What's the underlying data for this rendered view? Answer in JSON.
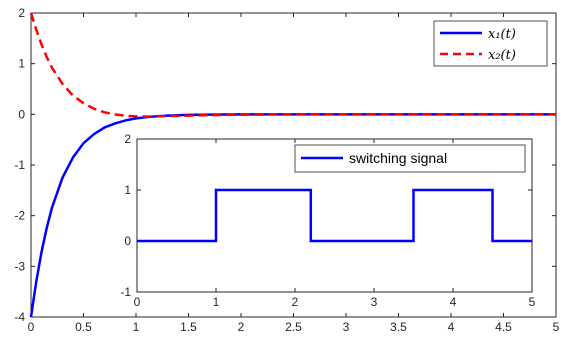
{
  "chart_data": [
    {
      "type": "line",
      "xlim": [
        0,
        5
      ],
      "ylim": [
        -4,
        2
      ],
      "xticks": [
        "0",
        "0.5",
        "1",
        "1.5",
        "2",
        "2.5",
        "3",
        "3.5",
        "4",
        "4.5",
        "5"
      ],
      "yticks": [
        "2",
        "1",
        "0",
        "-1",
        "-2",
        "-3",
        "-4"
      ],
      "grid": false,
      "legend_position": "top-right",
      "series": [
        {
          "name": "x₁(t)",
          "color": "#0000ff",
          "style": "solid",
          "x": [
            0,
            0.05,
            0.1,
            0.15,
            0.2,
            0.3,
            0.4,
            0.5,
            0.6,
            0.7,
            0.8,
            0.9,
            1.0,
            1.1,
            1.2,
            1.3,
            1.4,
            1.5,
            1.6,
            1.8,
            2.0,
            2.5,
            3.0,
            3.5,
            4.0,
            4.5,
            5.0
          ],
          "y": [
            -4.0,
            -3.3,
            -2.72,
            -2.24,
            -1.84,
            -1.25,
            -0.85,
            -0.57,
            -0.39,
            -0.26,
            -0.18,
            -0.12,
            -0.08,
            -0.055,
            -0.037,
            -0.025,
            -0.017,
            -0.011,
            -0.007,
            -0.003,
            -0.0013,
            0,
            0,
            0,
            0,
            0,
            0
          ]
        },
        {
          "name": "x₂(t)",
          "color": "#ff0000",
          "style": "dashed",
          "x": [
            0,
            0.05,
            0.1,
            0.15,
            0.2,
            0.3,
            0.4,
            0.5,
            0.6,
            0.7,
            0.8,
            0.9,
            1.0,
            1.1,
            1.2,
            1.4,
            1.6,
            1.8,
            2.0,
            2.5,
            3.0,
            3.5,
            4.0,
            4.5,
            5.0
          ],
          "y": [
            2.0,
            1.67,
            1.38,
            1.13,
            0.92,
            0.6,
            0.37,
            0.22,
            0.11,
            0.04,
            0.0,
            -0.03,
            -0.04,
            -0.045,
            -0.04,
            -0.03,
            -0.02,
            -0.012,
            -0.007,
            -0.002,
            0,
            0,
            0,
            0,
            0
          ]
        }
      ]
    },
    {
      "type": "line",
      "xlim": [
        0,
        5
      ],
      "ylim": [
        -1,
        2
      ],
      "xticks": [
        "0",
        "1",
        "2",
        "3",
        "4",
        "5"
      ],
      "yticks": [
        "2",
        "1",
        "0",
        "-1"
      ],
      "grid": false,
      "legend_position": "top-right",
      "series": [
        {
          "name": "switching signal",
          "color": "#0000ff",
          "style": "solid",
          "x": [
            0,
            1.0,
            1.0,
            2.2,
            2.2,
            3.5,
            3.5,
            4.5,
            4.5,
            5.0
          ],
          "y": [
            0,
            0,
            1,
            1,
            0,
            0,
            1,
            1,
            0,
            0
          ]
        }
      ]
    }
  ]
}
